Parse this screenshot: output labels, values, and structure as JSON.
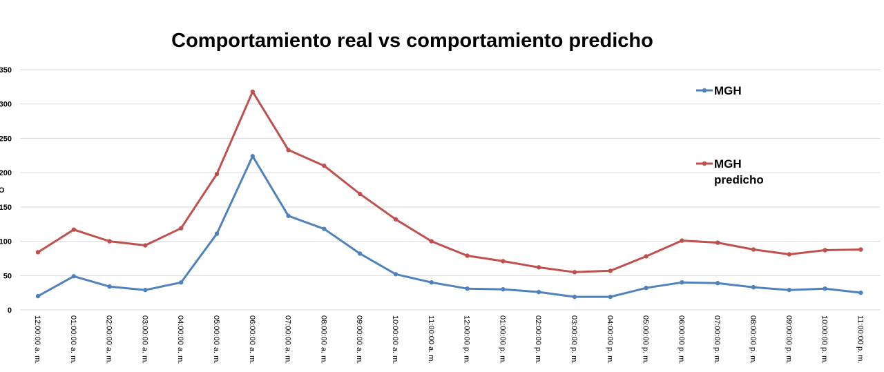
{
  "chart_data": {
    "type": "line",
    "title": "Comportamiento real vs comportamiento predicho",
    "ylabel_fragment": "O",
    "ylim": [
      0,
      350
    ],
    "yticks": [
      "0",
      "50",
      "100",
      "150",
      "200",
      "250",
      "300",
      "350"
    ],
    "ytick_values": [
      0,
      50,
      100,
      150,
      200,
      250,
      300,
      350
    ],
    "grid": true,
    "legend_position": "right",
    "categories": [
      "12:00:00 a. m.",
      "01:00:00 a. m.",
      "02:00:00 a. m.",
      "03:00:00 a. m.",
      "04:00:00 a. m.",
      "05:00:00 a. m.",
      "06:00:00 a. m.",
      "07:00:00 a. m.",
      "08:00:00 a. m.",
      "09:00:00 a. m.",
      "10:00:00 a. m.",
      "11:00:00 a. m.",
      "12:00:00 p. m.",
      "01:00:00 p. m.",
      "02:00:00 p. m.",
      "03:00:00 p. m.",
      "04:00:00 p. m.",
      "05:00:00 p. m.",
      "06:00:00 p. m.",
      "07:00:00 p. m.",
      "08:00:00 p. m.",
      "09:00:00 p. m.",
      "10:00:00 p. m.",
      "11:00:00 p. m."
    ],
    "series": [
      {
        "name": "MGH",
        "color": "#4f81bd",
        "values": [
          20,
          49,
          34,
          29,
          40,
          111,
          224,
          137,
          118,
          82,
          52,
          40,
          31,
          30,
          26,
          19,
          19,
          32,
          40,
          39,
          33,
          29,
          31,
          25
        ]
      },
      {
        "name": "MGH predicho",
        "color": "#c0504d",
        "values": [
          84,
          117,
          100,
          94,
          119,
          198,
          318,
          233,
          210,
          169,
          132,
          100,
          79,
          71,
          62,
          55,
          57,
          78,
          101,
          98,
          88,
          81,
          87,
          88
        ]
      }
    ],
    "legend": [
      {
        "lines": [
          "MGH"
        ],
        "color": "#4f81bd"
      },
      {
        "lines": [
          "MGH",
          "predicho"
        ],
        "color": "#c0504d"
      }
    ]
  }
}
